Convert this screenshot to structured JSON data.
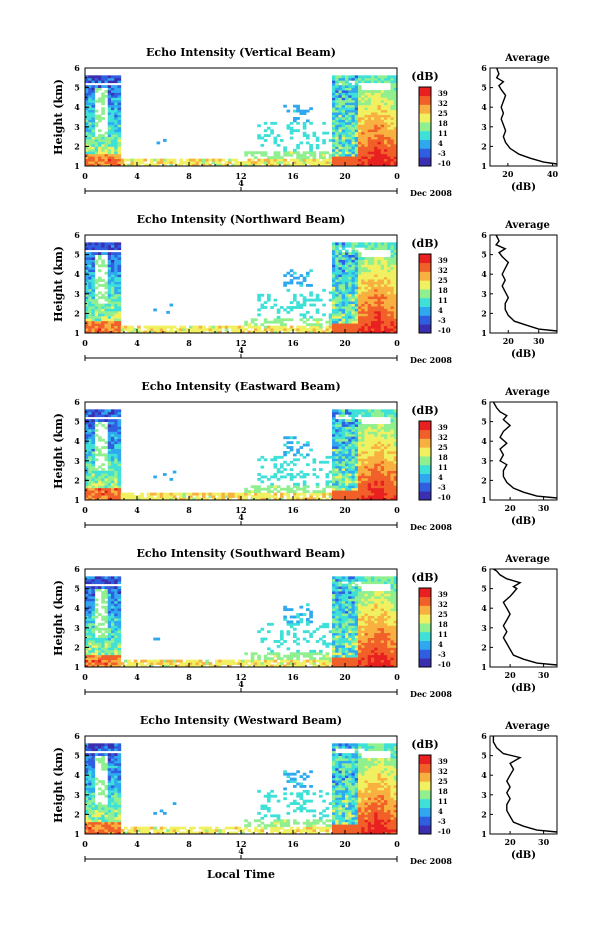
{
  "figure": {
    "date_label": "Dec 2008",
    "xlabel": "Local Time",
    "day_label": "4",
    "colorbar_unit": "(dB)",
    "colorbar_ticks": [
      "39",
      "32",
      "25",
      "18",
      "11",
      "4",
      "-3",
      "-10"
    ],
    "average_title": "Average",
    "average_xlabel": "(dB)",
    "colors": {
      "cb": [
        "#3a2fb0",
        "#2f5fe0",
        "#2fa8f0",
        "#3fe0d8",
        "#90f090",
        "#f0f060",
        "#f8b040",
        "#f06028",
        "#e82020"
      ]
    }
  },
  "chart_data": [
    {
      "type": "heatmap",
      "title": "Echo Intensity (Vertical Beam)",
      "ylabel": "Height (km)",
      "x_ticks": [
        "0",
        "4",
        "8",
        "12",
        "16",
        "20",
        "0"
      ],
      "y_ticks": [
        "1",
        "2",
        "3",
        "4",
        "5",
        "6"
      ],
      "xlim": [
        0,
        24
      ],
      "ylim": [
        1,
        6
      ],
      "average": {
        "type": "line",
        "title": "Average",
        "x_ticks": [
          "20",
          "40"
        ],
        "xlim": [
          12,
          42
        ],
        "ylim": [
          1,
          6
        ],
        "x": [
          42,
          36,
          30,
          25,
          21,
          19,
          18,
          19,
          18,
          17,
          18,
          17,
          18,
          19,
          17,
          16,
          18,
          15,
          16,
          15
        ],
        "y": [
          1.1,
          1.2,
          1.4,
          1.6,
          1.9,
          2.2,
          2.5,
          2.8,
          3.1,
          3.4,
          3.7,
          4.0,
          4.3,
          4.6,
          4.9,
          5.1,
          5.3,
          5.5,
          5.7,
          6.0
        ]
      }
    },
    {
      "type": "heatmap",
      "title": "Echo Intensity (Northward Beam)",
      "ylabel": "Height (km)",
      "x_ticks": [
        "0",
        "4",
        "8",
        "12",
        "16",
        "20",
        "0"
      ],
      "y_ticks": [
        "1",
        "2",
        "3",
        "4",
        "5",
        "6"
      ],
      "xlim": [
        0,
        24
      ],
      "ylim": [
        1,
        6
      ],
      "average": {
        "type": "line",
        "title": "Average",
        "x_ticks": [
          "20",
          "30"
        ],
        "xlim": [
          14,
          36
        ],
        "ylim": [
          1,
          6
        ],
        "x": [
          36,
          30,
          26,
          22,
          20,
          19,
          19,
          20,
          19,
          18,
          19,
          18,
          19,
          20,
          18,
          17,
          19,
          16,
          17,
          16
        ],
        "y": [
          1.1,
          1.2,
          1.4,
          1.6,
          1.9,
          2.2,
          2.5,
          2.8,
          3.1,
          3.4,
          3.7,
          4.0,
          4.3,
          4.6,
          4.9,
          5.1,
          5.3,
          5.5,
          5.7,
          6.0
        ]
      }
    },
    {
      "type": "heatmap",
      "title": "Echo Intensity (Eastward Beam)",
      "ylabel": "Height (km)",
      "x_ticks": [
        "0",
        "4",
        "8",
        "12",
        "16",
        "20",
        "0"
      ],
      "y_ticks": [
        "1",
        "2",
        "3",
        "4",
        "5",
        "6"
      ],
      "xlim": [
        0,
        24
      ],
      "ylim": [
        1,
        6
      ],
      "average": {
        "type": "line",
        "title": "Average",
        "x_ticks": [
          "20",
          "30"
        ],
        "xlim": [
          14,
          34
        ],
        "ylim": [
          1,
          6
        ],
        "x": [
          34,
          28,
          24,
          21,
          19,
          18,
          18,
          19,
          17,
          18,
          17,
          19,
          17,
          18,
          20,
          18,
          19,
          17,
          16,
          15
        ],
        "y": [
          1.1,
          1.2,
          1.4,
          1.6,
          1.9,
          2.2,
          2.5,
          2.8,
          3.0,
          3.3,
          3.6,
          3.9,
          4.2,
          4.5,
          4.8,
          5.1,
          5.3,
          5.5,
          5.7,
          6.0
        ]
      }
    },
    {
      "type": "heatmap",
      "title": "Echo Intensity (Southward Beam)",
      "ylabel": "Height (km)",
      "x_ticks": [
        "0",
        "4",
        "8",
        "12",
        "16",
        "20",
        "0"
      ],
      "y_ticks": [
        "1",
        "2",
        "3",
        "4",
        "5",
        "6"
      ],
      "xlim": [
        0,
        24
      ],
      "ylim": [
        1,
        6
      ],
      "average": {
        "type": "line",
        "title": "Average",
        "x_ticks": [
          "20",
          "30"
        ],
        "xlim": [
          14,
          34
        ],
        "ylim": [
          1,
          6
        ],
        "x": [
          34,
          28,
          24,
          21,
          20,
          19,
          18,
          19,
          18,
          19,
          20,
          19,
          18,
          20,
          21,
          22,
          21,
          23,
          19,
          17,
          16,
          15
        ],
        "y": [
          1.1,
          1.2,
          1.4,
          1.6,
          1.9,
          2.2,
          2.5,
          2.8,
          3.1,
          3.4,
          3.7,
          4.0,
          4.3,
          4.6,
          4.8,
          5.0,
          5.1,
          5.3,
          5.5,
          5.7,
          5.9,
          6.0
        ]
      }
    },
    {
      "type": "heatmap",
      "title": "Echo Intensity (Westward Beam)",
      "ylabel": "Height (km)",
      "x_ticks": [
        "0",
        "4",
        "8",
        "12",
        "16",
        "20",
        "0"
      ],
      "y_ticks": [
        "1",
        "2",
        "3",
        "4",
        "5",
        "6"
      ],
      "xlim": [
        0,
        24
      ],
      "ylim": [
        1,
        6
      ],
      "average": {
        "type": "line",
        "title": "Average",
        "x_ticks": [
          "20",
          "30"
        ],
        "xlim": [
          14,
          34
        ],
        "ylim": [
          1,
          6
        ],
        "x": [
          34,
          28,
          24,
          21,
          20,
          19,
          19,
          20,
          19,
          20,
          19,
          20,
          21,
          20,
          23,
          18,
          16,
          15,
          15
        ],
        "y": [
          1.1,
          1.2,
          1.4,
          1.6,
          1.9,
          2.2,
          2.5,
          2.8,
          3.1,
          3.4,
          3.7,
          4.0,
          4.3,
          4.6,
          4.9,
          5.1,
          5.4,
          5.7,
          6.0
        ]
      }
    }
  ]
}
